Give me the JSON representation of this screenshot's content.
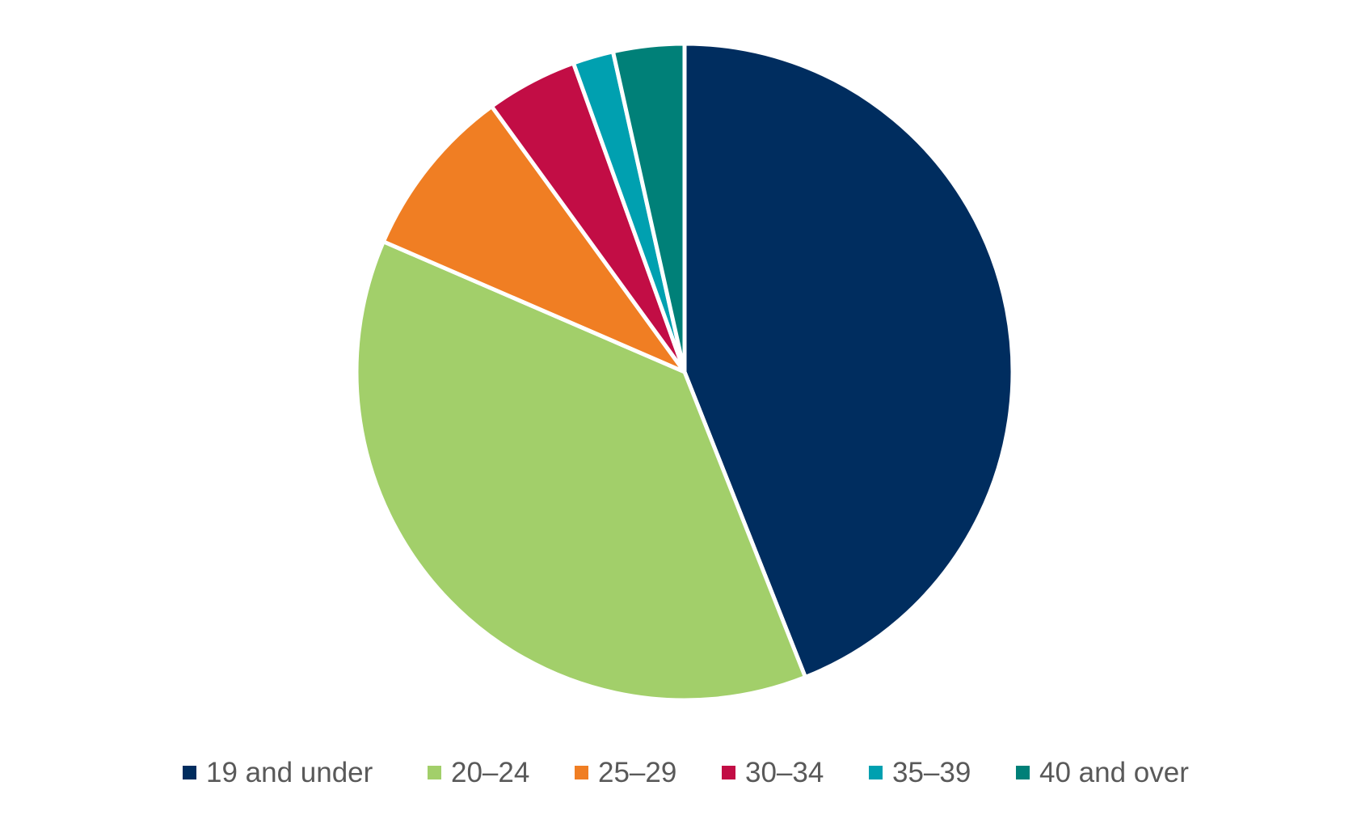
{
  "chart_data": {
    "type": "pie",
    "title": "",
    "categories": [
      "19 and under",
      "20–24",
      "25–29",
      "30–34",
      "35–39",
      "40 and over"
    ],
    "values": [
      44.0,
      37.5,
      8.5,
      4.5,
      2.0,
      3.5
    ],
    "colors": [
      "#002d5f",
      "#a2cf6a",
      "#f07e23",
      "#c20d45",
      "#00a0b0",
      "#008078"
    ],
    "start_angle": "12 o'clock",
    "direction": "clockwise",
    "legend_position": "bottom",
    "data_labels": false
  }
}
